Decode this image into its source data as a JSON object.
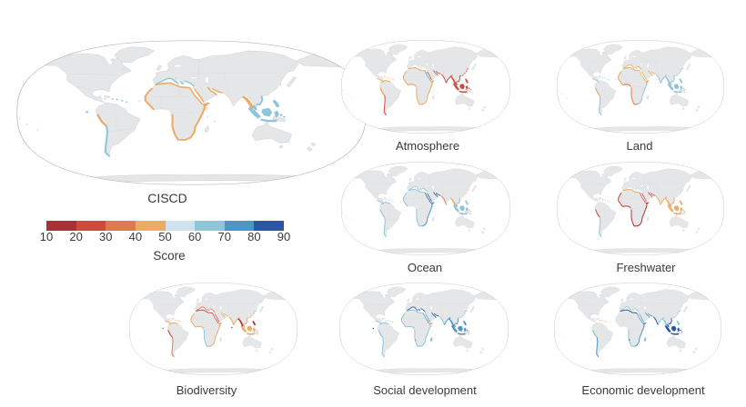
{
  "colorbar": {
    "label": "Score",
    "ticks": [
      "10",
      "20",
      "30",
      "40",
      "50",
      "60",
      "70",
      "80",
      "90"
    ],
    "segment_colors": [
      "#ab2f36",
      "#d0493d",
      "#e2784f",
      "#ecaa62",
      "#cfe3ee",
      "#8ec6d8",
      "#4c95c5",
      "#2c55a5"
    ]
  },
  "maps": [
    {
      "id": "ciscd",
      "label": "CISCD",
      "segments": {
        "medN": "#8ec6d8",
        "afN": "#ecaa62",
        "afNW": "#ecaa62",
        "afGulf": "",
        "afSW": "#ecaa62",
        "afE": "#ecaa62",
        "horn": "#ecaa62",
        "redSeaW": "#ecaa62",
        "redSeaE": "#ecaa62",
        "gulf": "#ecaa62",
        "indiaW": "",
        "indiaE": "",
        "myanmar": "#ecaa62",
        "seAsia": "#8ec6d8",
        "indochina": "#8ec6d8",
        "phil": "#8ec6d8",
        "china": "",
        "saWest": "#8ec6d8",
        "peru": "#ecaa62",
        "saNorth": "",
        "carib": "#8ec6d8",
        "camWest": "",
        "madag": "",
        "galap": "#8ec6d8",
        "namib": "",
        "maldive": ""
      }
    },
    {
      "id": "atmosphere",
      "label": "Atmosphere",
      "segments": {
        "medN": "",
        "afN": "#ecaa62",
        "afNW": "#ecaa62",
        "afGulf": "#ecaa62",
        "afSW": "#ecaa62",
        "afE": "#ecaa62",
        "horn": "#ecaa62",
        "redSeaW": "#4c95c5",
        "redSeaE": "#d0493d",
        "gulf": "#d0493d",
        "indiaW": "#d0493d",
        "indiaE": "#d0493d",
        "myanmar": "#d0493d",
        "seAsia": "#d0493d",
        "indochina": "#d0493d",
        "phil": "#d0493d",
        "china": "#d0493d",
        "saWest": "#d0493d",
        "peru": "#ecaa62",
        "saNorth": "#ecaa62",
        "carib": "#ecaa62",
        "camWest": "#ecaa62",
        "madag": "",
        "galap": "",
        "namib": "",
        "maldive": ""
      }
    },
    {
      "id": "land",
      "label": "Land",
      "segments": {
        "medN": "#ecaa62",
        "afN": "#ecaa62",
        "afNW": "#ecaa62",
        "afGulf": "#e2784f",
        "afSW": "#e2784f",
        "afE": "#8ec6d8",
        "horn": "#ecaa62",
        "redSeaW": "#ecaa62",
        "redSeaE": "#ecaa62",
        "gulf": "#ecaa62",
        "indiaW": "#8ec6d8",
        "indiaE": "#8ec6d8",
        "myanmar": "#8ec6d8",
        "seAsia": "#8ec6d8",
        "indochina": "#8ec6d8",
        "phil": "#8ec6d8",
        "china": "#8ec6d8",
        "saWest": "#8ec6d8",
        "peru": "#ecaa62",
        "saNorth": "",
        "carib": "#8ec6d8",
        "camWest": "#8ec6d8",
        "madag": "",
        "galap": "",
        "namib": "",
        "maldive": ""
      }
    },
    {
      "id": "ocean",
      "label": "Ocean",
      "segments": {
        "medN": "#8ec6d8",
        "afN": "#8ec6d8",
        "afNW": "#8ec6d8",
        "afGulf": "",
        "afSW": "#8ec6d8",
        "afE": "#4c95c5",
        "horn": "#4c95c5",
        "redSeaW": "#2c55a5",
        "redSeaE": "#2c55a5",
        "gulf": "#2c55a5",
        "indiaW": "#e2784f",
        "indiaE": "",
        "myanmar": "#ecaa62",
        "seAsia": "#8ec6d8",
        "indochina": "#8ec6d8",
        "phil": "#8ec6d8",
        "china": "",
        "saWest": "#8ec6d8",
        "peru": "#8ec6d8",
        "saNorth": "#8ec6d8",
        "carib": "#8ec6d8",
        "camWest": "#8ec6d8",
        "madag": "",
        "galap": "",
        "namib": "",
        "maldive": ""
      }
    },
    {
      "id": "freshwater",
      "label": "Freshwater",
      "segments": {
        "medN": "#cfe3ee",
        "afN": "#ecaa62",
        "afNW": "#d0493d",
        "afGulf": "#d0493d",
        "afSW": "#ab2f36",
        "afE": "#ab2f36",
        "horn": "#d0493d",
        "redSeaW": "#d0493d",
        "redSeaE": "#d0493d",
        "gulf": "#d0493d",
        "indiaW": "#ecaa62",
        "indiaE": "#ecaa62",
        "myanmar": "#ecaa62",
        "seAsia": "#ecaa62",
        "indochina": "#ecaa62",
        "phil": "#ecaa62",
        "china": "",
        "saWest": "#8ec6d8",
        "peru": "#d0493d",
        "saNorth": "",
        "carib": "#8ec6d8",
        "camWest": "",
        "madag": "",
        "galap": "",
        "namib": "",
        "maldive": ""
      }
    },
    {
      "id": "biodiversity",
      "label": "Biodiversity",
      "segments": {
        "medN": "#e2784f",
        "afN": "#d0493d",
        "afNW": "#ecaa62",
        "afGulf": "#ecaa62",
        "afSW": "#8ec6d8",
        "afE": "#ecaa62",
        "horn": "#ecaa62",
        "redSeaW": "#d0493d",
        "redSeaE": "#d0493d",
        "gulf": "#ecaa62",
        "indiaW": "#ecaa62",
        "indiaE": "#ecaa62",
        "myanmar": "#ab2f36",
        "seAsia": "#ecaa62",
        "indochina": "#ecaa62",
        "phil": "#ab2f36",
        "china": "#ecaa62",
        "saWest": "#e2784f",
        "peru": "#d0493d",
        "saNorth": "#ecaa62",
        "carib": "#ecaa62",
        "camWest": "#ecaa62",
        "madag": "",
        "galap": "#d0493d",
        "namib": "",
        "maldive": "#2c55a5"
      }
    },
    {
      "id": "social",
      "label": "Social development",
      "segments": {
        "medN": "#2c55a5",
        "afN": "#8ec6d8",
        "afNW": "#8ec6d8",
        "afGulf": "#8ec6d8",
        "afSW": "#8ec6d8",
        "afE": "#8ec6d8",
        "horn": "#ecaa62",
        "redSeaW": "#4c95c5",
        "redSeaE": "#4c95c5",
        "gulf": "#2c55a5",
        "indiaW": "#8ec6d8",
        "indiaE": "#4c95c5",
        "myanmar": "#4c95c5",
        "seAsia": "#4c95c5",
        "indochina": "#4c95c5",
        "phil": "#4c95c5",
        "china": "#8ec6d8",
        "saWest": "#8ec6d8",
        "peru": "#8ec6d8",
        "saNorth": "#8ec6d8",
        "carib": "#8ec6d8",
        "camWest": "#8ec6d8",
        "madag": "#8ec6d8",
        "galap": "#2c55a5",
        "namib": "#e2784f",
        "maldive": ""
      }
    },
    {
      "id": "economic",
      "label": "Economic development",
      "segments": {
        "medN": "#8ec6d8",
        "afN": "#2c55a5",
        "afNW": "",
        "afGulf": "",
        "afSW": "#8ec6d8",
        "afE": "#4c95c5",
        "horn": "#4c95c5",
        "redSeaW": "#4c95c5",
        "redSeaE": "#4c95c5",
        "gulf": "#4c95c5",
        "indiaW": "#2c55a5",
        "indiaE": "#8ec6d8",
        "myanmar": "#8ec6d8",
        "seAsia": "#2c55a5",
        "indochina": "#2c55a5",
        "phil": "#8ec6d8",
        "china": "#8ec6d8",
        "saWest": "#4c95c5",
        "peru": "#8ec6d8",
        "saNorth": "",
        "carib": "#ecaa62",
        "camWest": "",
        "madag": "#8ec6d8",
        "galap": "",
        "namib": "#2c55a5",
        "maldive": ""
      }
    }
  ]
}
